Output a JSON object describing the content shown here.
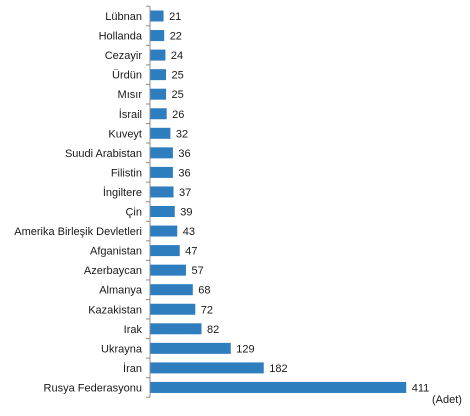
{
  "chart_data": {
    "type": "bar",
    "orientation": "horizontal",
    "categories": [
      "Lübnan",
      "Hollanda",
      "Cezayir",
      "Ürdün",
      "Mısır",
      "İsrail",
      "Kuveyt",
      "Suudi Arabistan",
      "Filistin",
      "İngiltere",
      "Çin",
      "Amerika Birleşik Devletleri",
      "Afganistan",
      "Azerbaycan",
      "Almanya",
      "Kazakistan",
      "Irak",
      "Ukrayna",
      "İran",
      "Rusya Federasyonu"
    ],
    "values": [
      21,
      22,
      24,
      25,
      25,
      26,
      32,
      36,
      36,
      37,
      39,
      43,
      47,
      57,
      68,
      72,
      82,
      129,
      182,
      411
    ],
    "unit_label": "(Adet)",
    "bar_color": "#2e7ebf",
    "xlim": [
      0,
      450
    ],
    "grid": false,
    "data_labels": true
  }
}
